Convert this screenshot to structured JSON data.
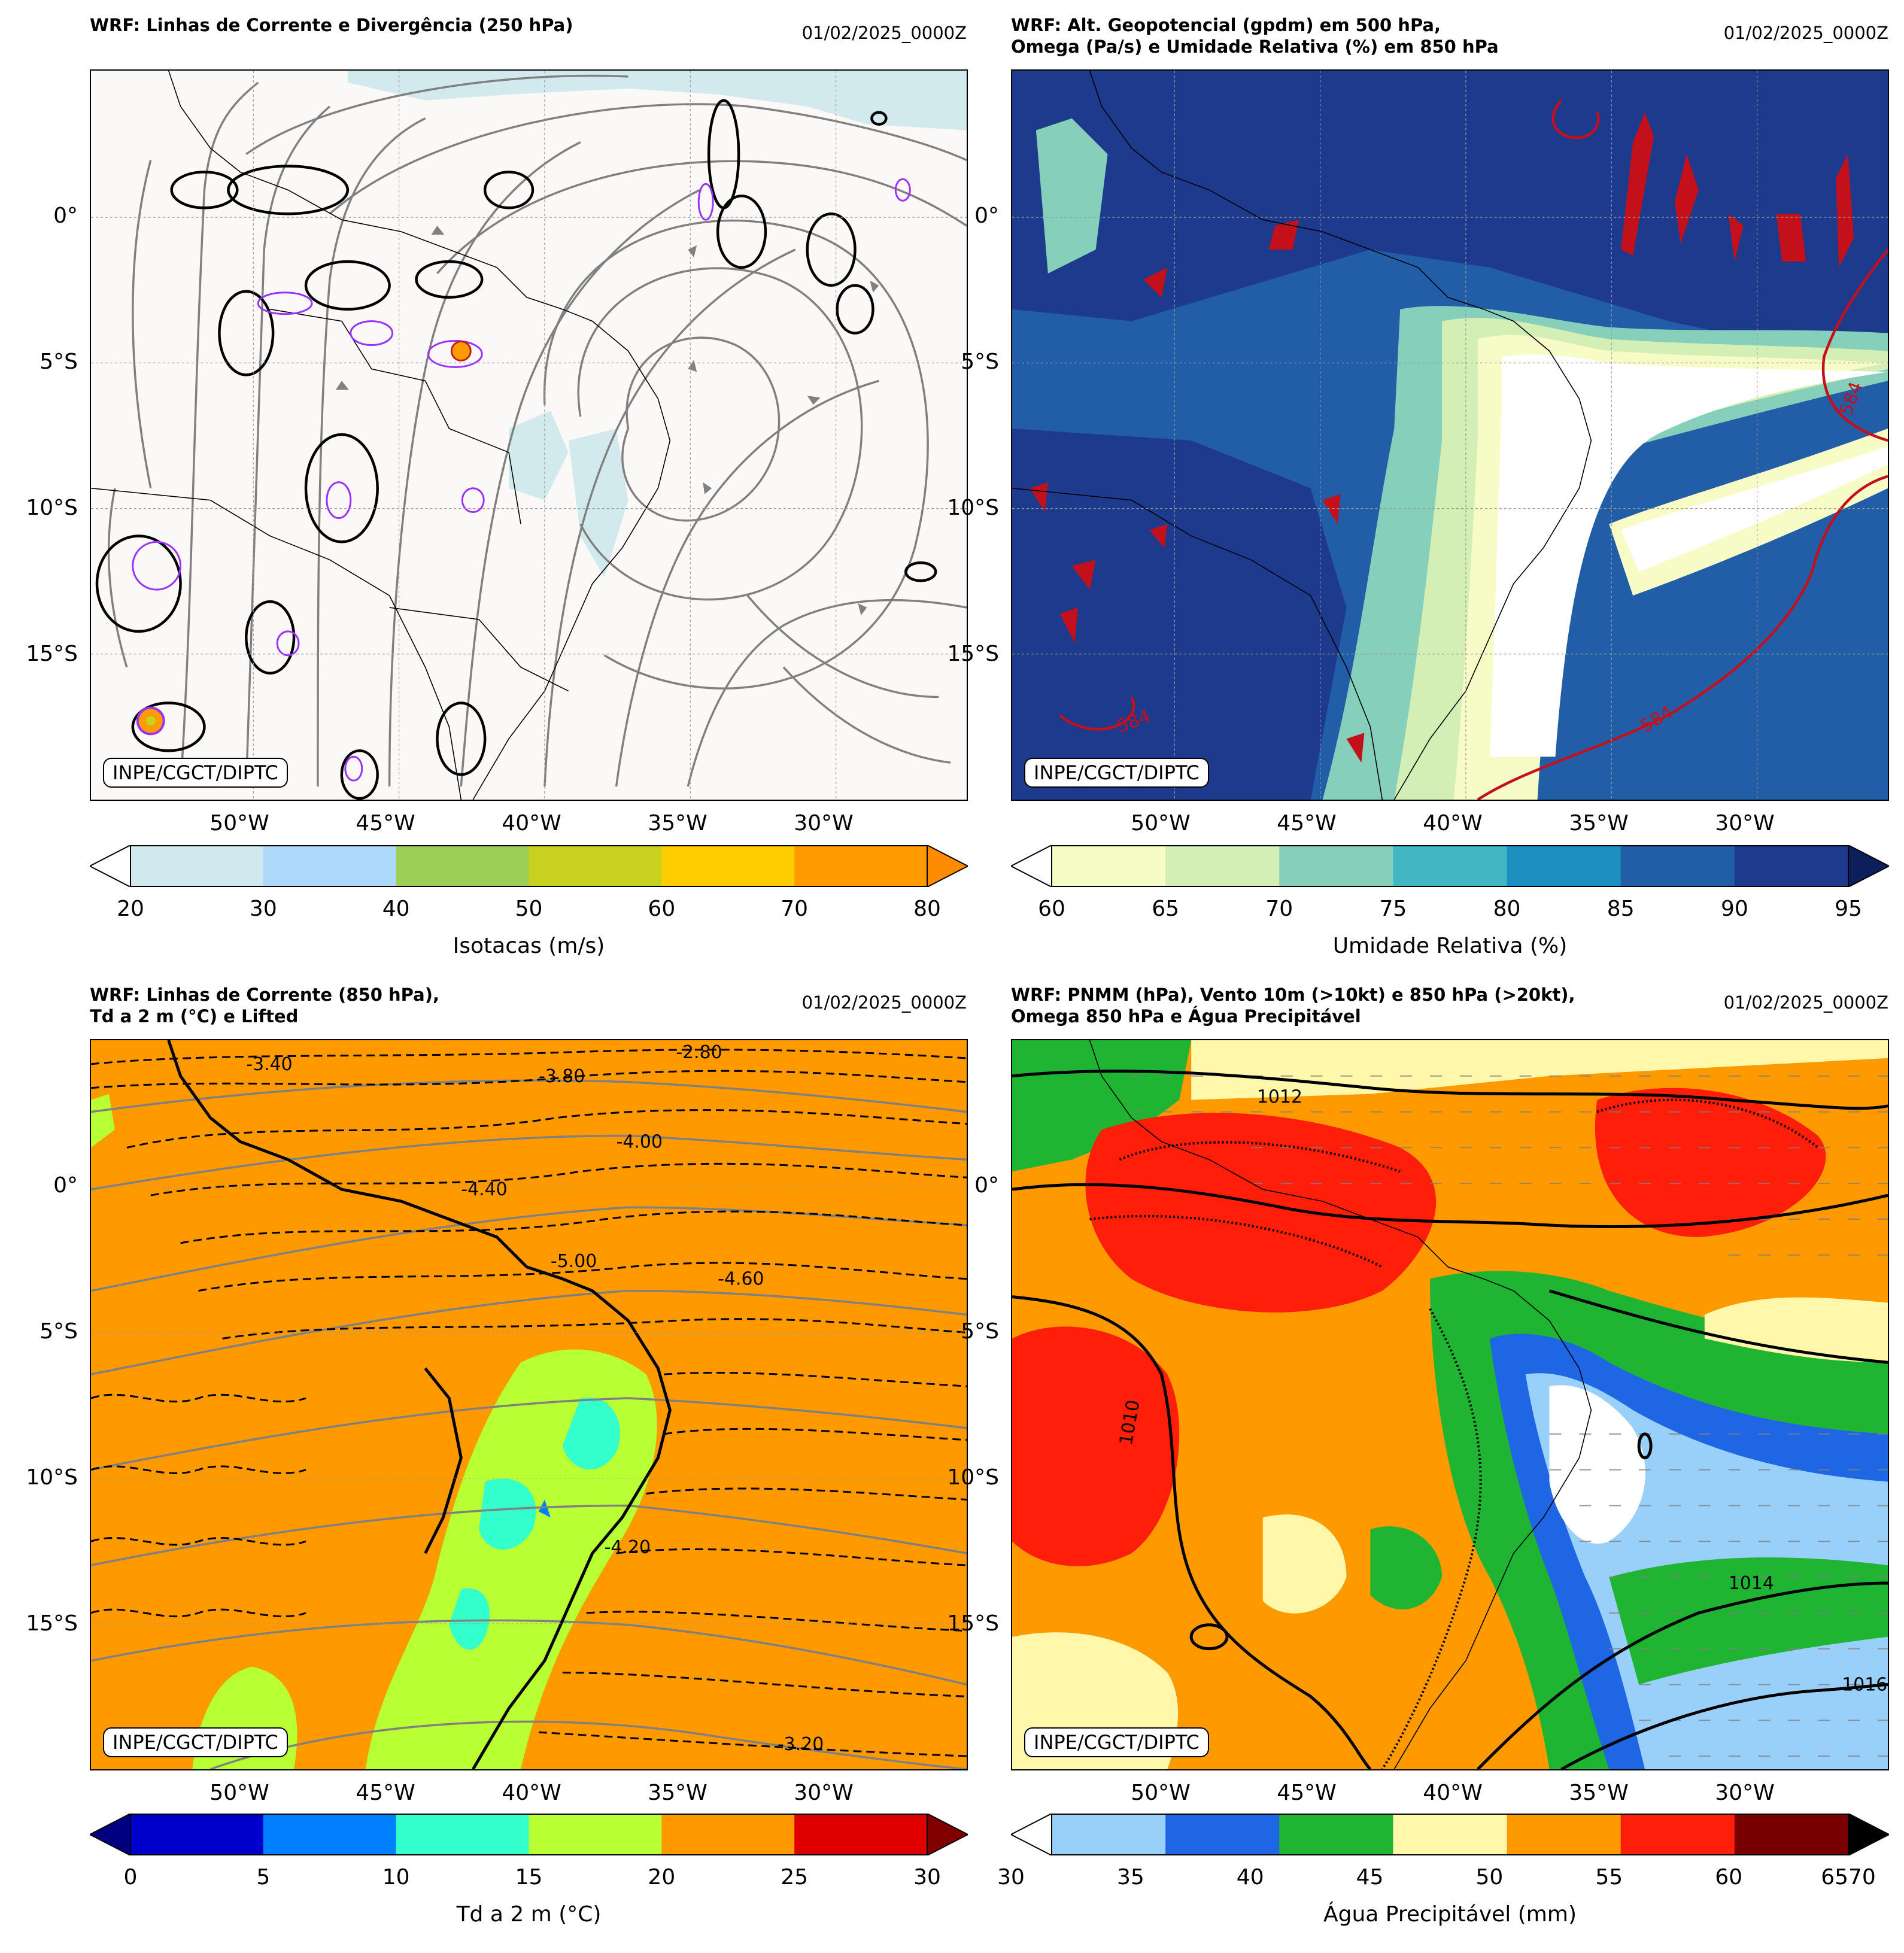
{
  "credit": "INPE/CGCT/DIPTC",
  "lat_labels": [
    "0°",
    "5°S",
    "10°S",
    "15°S"
  ],
  "lon_labels": [
    "50°W",
    "45°W",
    "40°W",
    "35°W",
    "30°W"
  ],
  "panels": {
    "p1": {
      "title": "WRF: Linhas de Corrente e Divergência (250 hPa)",
      "date": "01/02/2025_0000Z",
      "colorbar": {
        "label": "Isotacas (m/s)",
        "ticks": [
          "20",
          "30",
          "40",
          "50",
          "60",
          "70",
          "80"
        ],
        "colors": [
          "#d0e8ee",
          "#acd8fa",
          "#9ccf55",
          "#c8d21e",
          "#ffcc00",
          "#ff9a00"
        ],
        "under": "#ffffff",
        "over": "#ff8c00"
      }
    },
    "p2": {
      "title": "WRF: Alt. Geopotencial (gpdm) em 500 hPa,\nOmega (Pa/s) e Umidade Relativa (%) em 850 hPa",
      "date": "01/02/2025_0000Z",
      "contour_labels": [
        "584",
        "584",
        "584"
      ],
      "colorbar": {
        "label": "Umidade Relativa (%)",
        "ticks": [
          "60",
          "65",
          "70",
          "75",
          "80",
          "85",
          "90",
          "95"
        ],
        "colors": [
          "#f7fcc6",
          "#d4efb5",
          "#86cfba",
          "#41b6c4",
          "#1d8fc0",
          "#225ea8",
          "#1e3a8c"
        ],
        "under": "#ffffff",
        "over": "#0c1f5c"
      }
    },
    "p3": {
      "title": "WRF: Linhas de Corrente (850 hPa),\nTd a 2 m (°C) e Lifted",
      "date": "01/02/2025_0000Z",
      "contour_labels": [
        "-2.80",
        "-3.20",
        "-3.40",
        "-3.80",
        "-4.00",
        "-4.20",
        "-4.40",
        "-4.60",
        "-5.00"
      ],
      "colorbar": {
        "label": "Td a 2 m (°C)",
        "ticks": [
          "0",
          "5",
          "10",
          "15",
          "20",
          "25",
          "30"
        ],
        "colors": [
          "#0000cc",
          "#0080ff",
          "#33ffcc",
          "#b8ff33",
          "#ff9900",
          "#e00000"
        ],
        "under": "#000080",
        "over": "#800000"
      }
    },
    "p4": {
      "title": "WRF: PNMM (hPa), Vento 10m (>10kt) e 850 hPa (>20kt),\nOmega 850 hPa e Água Precipitável",
      "date": "01/02/2025_0000Z",
      "contour_labels": [
        "1012",
        "1010",
        "1014",
        "1016"
      ],
      "colorbar": {
        "label": "Água Precipitável (mm)",
        "ticks": [
          "30",
          "35",
          "40",
          "45",
          "50",
          "55",
          "60",
          "6570"
        ],
        "colors": [
          "#99d0fa",
          "#1f66e5",
          "#1fb432",
          "#fff8aa",
          "#ff9900",
          "#ff1e0a",
          "#780000"
        ],
        "under": "#ffffff",
        "over": "#000000"
      }
    }
  }
}
